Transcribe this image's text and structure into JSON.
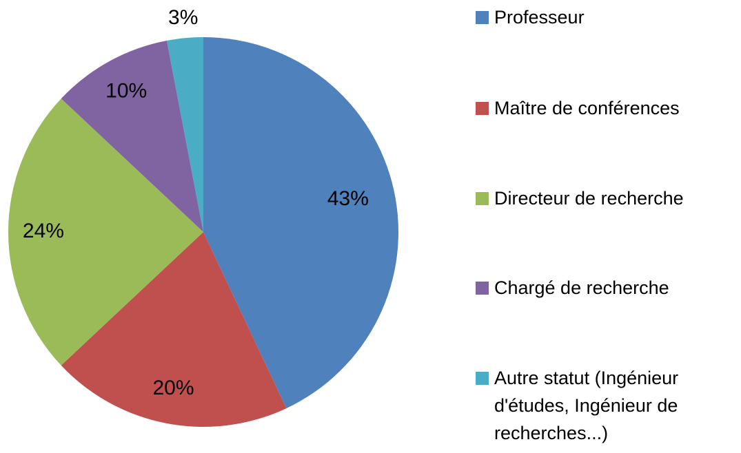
{
  "chart_data": {
    "type": "pie",
    "categories": [
      "Professeur",
      "Maître de conférences",
      "Directeur de recherche",
      "Chargé de recherche",
      "Autre statut (Ingénieur d'études, Ingénieur de recherches...)"
    ],
    "values": [
      43,
      20,
      24,
      10,
      3
    ],
    "value_labels": [
      "43%",
      "20%",
      "24%",
      "10%",
      "3%"
    ],
    "colors": [
      "#4f81bd",
      "#c0504d",
      "#9bbb59",
      "#8064a2",
      "#4bacc6"
    ],
    "legend": "right"
  }
}
